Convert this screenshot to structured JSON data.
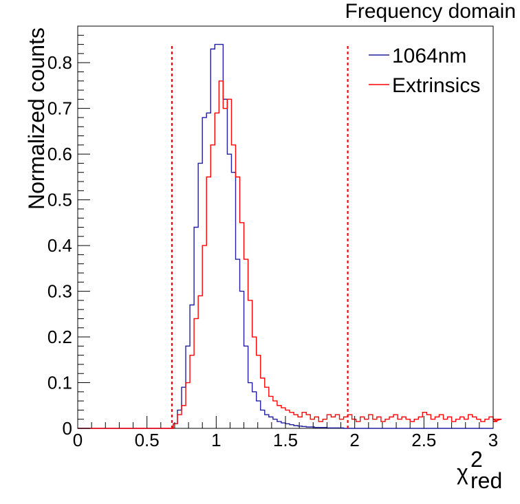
{
  "chart_data": {
    "type": "histogram",
    "title": "Frequency domain",
    "xlabel": "χ",
    "xlabel_sup": "2",
    "xlabel_sub": "red",
    "ylabel": "Normalized counts",
    "xlim": [
      0,
      3
    ],
    "ylim": [
      0,
      0.88
    ],
    "x_ticks": [
      0,
      0.5,
      1,
      1.5,
      2,
      2.5,
      3
    ],
    "x_tick_labels": [
      "0",
      "0.5",
      "1",
      "1.5",
      "2",
      "2.5",
      "3"
    ],
    "y_ticks": [
      0,
      0.1,
      0.2,
      0.3,
      0.4,
      0.5,
      0.6,
      0.7,
      0.8
    ],
    "y_tick_labels": [
      "0",
      "0.1",
      "0.2",
      "0.3",
      "0.4",
      "0.5",
      "0.6",
      "0.7",
      "0.8"
    ],
    "bin_width": 0.03,
    "legend": {
      "position": "top-right",
      "entries": [
        "1064nm",
        "Extrinsics"
      ]
    },
    "series": [
      {
        "name": "1064nm",
        "color": "#1f1fa0",
        "bins_start": 0.66,
        "values": [
          0.0,
          0.01,
          0.04,
          0.09,
          0.18,
          0.27,
          0.44,
          0.58,
          0.68,
          0.69,
          0.83,
          0.84,
          0.84,
          0.72,
          0.6,
          0.56,
          0.37,
          0.3,
          0.18,
          0.1,
          0.08,
          0.06,
          0.04,
          0.03,
          0.025,
          0.02,
          0.015,
          0.012,
          0.01,
          0.008,
          0.006,
          0.005,
          0.004,
          0.003,
          0.003,
          0.002,
          0.002,
          0.002,
          0.001,
          0.001,
          0.001,
          0.001,
          0.0,
          0.0
        ]
      },
      {
        "name": "Extrinsics",
        "color": "#ff0000",
        "bins_start": 0.66,
        "values": [
          0.0,
          0.01,
          0.03,
          0.05,
          0.1,
          0.16,
          0.24,
          0.29,
          0.4,
          0.55,
          0.62,
          0.69,
          0.76,
          0.7,
          0.72,
          0.62,
          0.55,
          0.45,
          0.37,
          0.28,
          0.2,
          0.16,
          0.11,
          0.09,
          0.07,
          0.06,
          0.05,
          0.045,
          0.04,
          0.035,
          0.03,
          0.025,
          0.035,
          0.03,
          0.02,
          0.025,
          0.015,
          0.02,
          0.03,
          0.025,
          0.03,
          0.02,
          0.025,
          0.03,
          0.02,
          0.015,
          0.025,
          0.02,
          0.03,
          0.02,
          0.025,
          0.015,
          0.02,
          0.025,
          0.03,
          0.02,
          0.025,
          0.02,
          0.015,
          0.02,
          0.025,
          0.035,
          0.03,
          0.02,
          0.025,
          0.03,
          0.02,
          0.025,
          0.015,
          0.02,
          0.025,
          0.02,
          0.03,
          0.025,
          0.02,
          0.015,
          0.02,
          0.025,
          0.02,
          0.015,
          0.02
        ]
      }
    ],
    "threshold_lines": [
      {
        "x": 0.68,
        "color": "#ff0000",
        "style": "dotted"
      },
      {
        "x": 1.95,
        "color": "#ff0000",
        "style": "dotted"
      }
    ]
  }
}
